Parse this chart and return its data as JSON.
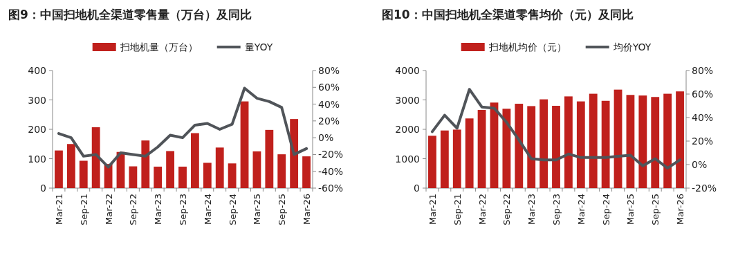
{
  "chart_data": [
    {
      "type": "bar",
      "title": "图9：中国扫地机全渠道零售量（万台）及同比",
      "categories": [
        "Mar-21",
        null,
        "Sep-21",
        null,
        "Mar-22",
        null,
        "Sep-22",
        null,
        "Mar-23",
        null,
        "Sep-23",
        null,
        "Mar-24",
        null,
        "Sep-24",
        null,
        "Mar-25",
        null,
        "Sep-25",
        null,
        "Mar-26"
      ],
      "series": [
        {
          "name": "扫地机量（万台）",
          "color": "#c0201c",
          "values": [
            128,
            150,
            93,
            207,
            82,
            123,
            74,
            162,
            73,
            126,
            73,
            187,
            86,
            138,
            84,
            295,
            125,
            198,
            115,
            235,
            108
          ]
        },
        {
          "name": "量YOY",
          "type": "line",
          "axis": "y2",
          "color": "#505459",
          "values": [
            5,
            0,
            -22,
            -20,
            -35,
            -18,
            -20,
            -22,
            -11,
            3,
            0,
            15,
            17,
            10,
            16,
            59,
            47,
            43,
            36,
            -20,
            -13
          ]
        }
      ],
      "ylim": [
        0,
        400
      ],
      "yticks": [
        0,
        100,
        200,
        300,
        400
      ],
      "y2lim": [
        -60,
        80
      ],
      "y2ticks": [
        {
          "value": -60,
          "label": "-60%"
        },
        {
          "value": -40,
          "label": "-40%"
        },
        {
          "value": -20,
          "label": "-20%"
        },
        {
          "value": 0,
          "label": "0%"
        },
        {
          "value": 20,
          "label": "20%"
        },
        {
          "value": 40,
          "label": "40%"
        },
        {
          "value": 60,
          "label": "60%"
        },
        {
          "value": 80,
          "label": "80%"
        }
      ],
      "grid": false,
      "legend": "top"
    },
    {
      "type": "bar",
      "title": "图10：中国扫地机全渠道零售均价（元）及同比",
      "categories": [
        "Mar-21",
        null,
        "Sep-21",
        null,
        "Mar-22",
        null,
        "Sep-22",
        null,
        "Mar-23",
        null,
        "Sep-23",
        null,
        "Mar-24",
        null,
        "Sep-24",
        null,
        "Mar-25",
        null,
        "Sep-25",
        null,
        "Mar-26"
      ],
      "series": [
        {
          "name": "扫地机均价（元）",
          "color": "#c0201c",
          "values": [
            1780,
            1960,
            1990,
            2370,
            2660,
            2910,
            2700,
            2870,
            2790,
            3020,
            2800,
            3120,
            2950,
            3210,
            2970,
            3350,
            3170,
            3150,
            3100,
            3210,
            3290
          ]
        },
        {
          "name": "均价YOY",
          "type": "line",
          "axis": "y2",
          "color": "#505459",
          "values": [
            28,
            42,
            31,
            64,
            49,
            48,
            36,
            21,
            5,
            4,
            4,
            9,
            6,
            6,
            6,
            7,
            8,
            -1,
            5,
            -3,
            4
          ]
        }
      ],
      "ylim": [
        0,
        4000
      ],
      "yticks": [
        0,
        1000,
        2000,
        3000,
        4000
      ],
      "y2lim": [
        -20,
        80
      ],
      "y2ticks": [
        {
          "value": -20,
          "label": "-20%"
        },
        {
          "value": 0,
          "label": "0%"
        },
        {
          "value": 20,
          "label": "20%"
        },
        {
          "value": 40,
          "label": "40%"
        },
        {
          "value": 60,
          "label": "60%"
        },
        {
          "value": 80,
          "label": "80%"
        }
      ],
      "grid": false,
      "legend": "top"
    }
  ]
}
